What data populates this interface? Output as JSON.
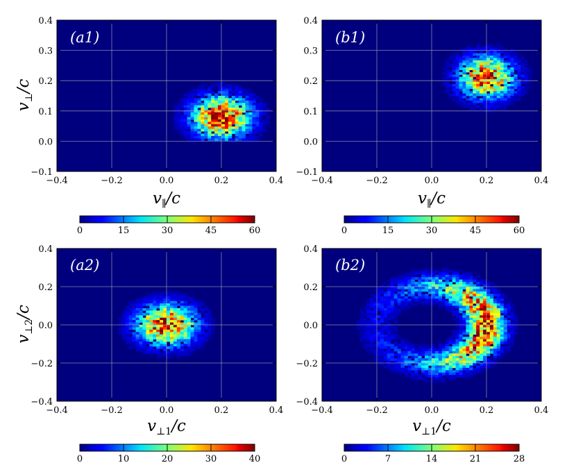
{
  "chart_data": [
    {
      "type": "heatmap",
      "panel_label": "(a1)",
      "xlabel": "v∥/c",
      "ylabel": "v⊥/c",
      "xlim": [
        -0.4,
        0.4
      ],
      "ylim": [
        -0.1,
        0.4
      ],
      "xticks": [
        -0.4,
        -0.2,
        0.0,
        0.2,
        0.4
      ],
      "xtick_labels": [
        "−0.4",
        "−0.2",
        "0.0",
        "0.2",
        "0.4"
      ],
      "yticks": [
        -0.1,
        0.0,
        0.1,
        0.2,
        0.3,
        0.4
      ],
      "ytick_labels": [
        "−0.1",
        "0.0",
        "0.1",
        "0.2",
        "0.3",
        "0.4"
      ],
      "grid": true,
      "distribution": {
        "shape": "blob",
        "center": [
          0.2,
          0.08
        ],
        "sigma": [
          0.07,
          0.045
        ],
        "cutoff_below_y": 0.0
      },
      "colorbar": {
        "min": 0,
        "max": 60,
        "ticks": [
          0,
          15,
          30,
          45,
          60
        ],
        "tick_labels": [
          "0",
          "15",
          "30",
          "45",
          "60"
        ]
      },
      "peak": 60
    },
    {
      "type": "heatmap",
      "panel_label": "(b1)",
      "xlabel": "v∥/c",
      "ylabel": "",
      "xlim": [
        -0.4,
        0.4
      ],
      "ylim": [
        -0.1,
        0.4
      ],
      "xticks": [
        -0.4,
        -0.2,
        0.0,
        0.2,
        0.4
      ],
      "xtick_labels": [
        "−0.4",
        "−0.2",
        "0.0",
        "0.2",
        "0.4"
      ],
      "yticks": [
        -0.1,
        0.0,
        0.1,
        0.2,
        0.3,
        0.4
      ],
      "ytick_labels": [
        "−0.1",
        "0.0",
        "0.1",
        "0.2",
        "0.3",
        "0.4"
      ],
      "grid": true,
      "distribution": {
        "shape": "blob",
        "center": [
          0.2,
          0.21
        ],
        "sigma": [
          0.065,
          0.045
        ]
      },
      "colorbar": {
        "min": 0,
        "max": 60,
        "ticks": [
          0,
          15,
          30,
          45,
          60
        ],
        "tick_labels": [
          "0",
          "15",
          "30",
          "45",
          "60"
        ]
      },
      "peak": 55
    },
    {
      "type": "heatmap",
      "panel_label": "(a2)",
      "xlabel": "v⊥1/c",
      "ylabel": "v⊥2/c",
      "xlim": [
        -0.4,
        0.4
      ],
      "ylim": [
        -0.4,
        0.4
      ],
      "xticks": [
        -0.4,
        -0.2,
        0.0,
        0.2,
        0.4
      ],
      "xtick_labels": [
        "−0.4",
        "−0.2",
        "0.0",
        "0.2",
        "0.4"
      ],
      "yticks": [
        -0.4,
        -0.2,
        0.0,
        0.2,
        0.4
      ],
      "ytick_labels": [
        "−0.4",
        "−0.2",
        "0.0",
        "0.2",
        "0.4"
      ],
      "grid": true,
      "distribution": {
        "shape": "blob",
        "center": [
          0.0,
          0.0
        ],
        "sigma": [
          0.07,
          0.07
        ]
      },
      "colorbar": {
        "min": 0,
        "max": 40,
        "ticks": [
          0,
          10,
          20,
          30,
          40
        ],
        "tick_labels": [
          "0",
          "10",
          "20",
          "30",
          "40"
        ]
      },
      "peak": 38
    },
    {
      "type": "heatmap",
      "panel_label": "(b2)",
      "xlabel": "v⊥1/c",
      "ylabel": "",
      "xlim": [
        -0.4,
        0.4
      ],
      "ylim": [
        -0.4,
        0.4
      ],
      "xticks": [
        -0.4,
        -0.2,
        0.0,
        0.2,
        0.4
      ],
      "xtick_labels": [
        "−0.4",
        "−0.2",
        "0.0",
        "0.2",
        "0.4"
      ],
      "yticks": [
        -0.4,
        -0.2,
        0.0,
        0.2,
        0.4
      ],
      "ytick_labels": [
        "−0.4",
        "−0.2",
        "0.0",
        "0.2",
        "0.4"
      ],
      "grid": true,
      "distribution": {
        "shape": "crescent",
        "center": [
          0.0,
          0.0
        ],
        "radius": 0.2,
        "thickness": 0.045,
        "peak_angle_deg": 0,
        "angular_width_deg": 60
      },
      "colorbar": {
        "min": 0,
        "max": 28,
        "ticks": [
          0,
          7,
          14,
          21,
          28
        ],
        "tick_labels": [
          "0",
          "7",
          "14",
          "21",
          "28"
        ]
      },
      "peak": 26
    }
  ]
}
